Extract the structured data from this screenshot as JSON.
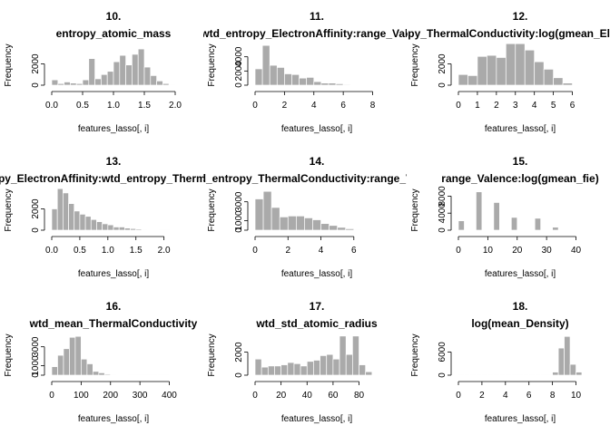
{
  "chart_data": [
    {
      "type": "bar",
      "title_line1": "10.",
      "title_line2": "entropy_atomic_mass",
      "xlabel": "features_lasso[, i]",
      "ylabel": "Frequency",
      "xlim": [
        0,
        2.0
      ],
      "ylim": [
        0,
        4000
      ],
      "xticks": [
        0.0,
        0.5,
        1.0,
        1.5,
        2.0
      ],
      "xtick_labels": [
        "0.0",
        "0.5",
        "1.0",
        "1.5",
        "2.0"
      ],
      "yticks": [
        0,
        2000
      ],
      "ytick_labels": [
        "0",
        "2000"
      ],
      "bin_start": 0.0,
      "bin_width": 0.1,
      "values": [
        500,
        150,
        300,
        200,
        150,
        500,
        2500,
        600,
        1000,
        1300,
        2200,
        2800,
        1900,
        2900,
        3400,
        1700,
        900,
        400,
        150,
        50
      ]
    },
    {
      "type": "bar",
      "title_line1": "11.",
      "title_line2": "wtd_entropy_ElectronAffinity:range_Valence",
      "xlabel": "features_lasso[, i]",
      "ylabel": "Frequency",
      "xlim": [
        0,
        8.4
      ],
      "ylim": [
        0,
        6000
      ],
      "xticks": [
        0,
        2,
        4,
        6,
        8
      ],
      "xtick_labels": [
        "0",
        "2",
        "4",
        "6",
        "8"
      ],
      "yticks": [
        0,
        2000,
        4000
      ],
      "ytick_labels": [
        "0",
        "2000",
        "4000"
      ],
      "bin_start": 0.0,
      "bin_width": 0.5,
      "values": [
        2300,
        5600,
        2800,
        2500,
        1600,
        1500,
        1000,
        1100,
        500,
        300,
        300,
        200,
        100,
        50,
        50,
        50
      ]
    },
    {
      "type": "bar",
      "title_line1": "12.",
      "title_line2": "wtd_entropy_ThermalConductivity:log(gmean_ElectronAffinity)",
      "xlabel": "features_lasso[, i]",
      "ylabel": "Frequency",
      "xlim": [
        0,
        6.5
      ],
      "ylim": [
        0,
        4000
      ],
      "xticks": [
        0,
        1,
        2,
        3,
        4,
        5,
        6
      ],
      "xtick_labels": [
        "0",
        "1",
        "2",
        "3",
        "4",
        "5",
        "6"
      ],
      "yticks": [
        0,
        2000
      ],
      "ytick_labels": [
        "0",
        "2000"
      ],
      "bin_start": 0.0,
      "bin_width": 0.5,
      "values": [
        1000,
        900,
        2700,
        2800,
        2600,
        3900,
        3900,
        3300,
        2200,
        1500,
        700,
        200
      ]
    },
    {
      "type": "bar",
      "title_line1": "13.",
      "title_line2": "wtd_entropy_ElectronAffinity:wtd_entropy_ThermalConductivity",
      "xlabel": "features_lasso[, i]",
      "ylabel": "Frequency",
      "xlim": [
        0,
        2.2
      ],
      "ylim": [
        0,
        4000
      ],
      "xticks": [
        0.0,
        0.5,
        1.0,
        1.5,
        2.0
      ],
      "xtick_labels": [
        "0.0",
        "0.5",
        "1.0",
        "1.5",
        "2.0"
      ],
      "yticks": [
        0,
        2000
      ],
      "ytick_labels": [
        "0",
        "2000"
      ],
      "bin_start": 0.0,
      "bin_width": 0.1,
      "values": [
        2000,
        3900,
        3500,
        2500,
        1800,
        1500,
        1300,
        1000,
        800,
        600,
        500,
        300,
        300,
        200,
        150,
        100,
        50,
        30,
        20,
        10,
        5
      ]
    },
    {
      "type": "bar",
      "title_line1": "14.",
      "title_line2": "wtd_entropy_ThermalConductivity:range_Valence",
      "xlabel": "features_lasso[, i]",
      "ylabel": "Frequency",
      "xlim": [
        0,
        7.5
      ],
      "ylim": [
        0,
        4500
      ],
      "xticks": [
        0,
        2,
        4,
        6
      ],
      "xtick_labels": [
        "0",
        "2",
        "4",
        "6"
      ],
      "yticks": [
        0,
        1000,
        3000
      ],
      "ytick_labels": [
        "0",
        "1000",
        "3000"
      ],
      "bin_start": 0.0,
      "bin_width": 0.5,
      "values": [
        3300,
        4100,
        2400,
        1400,
        1500,
        1500,
        1300,
        1100,
        700,
        500,
        300,
        150,
        50
      ]
    },
    {
      "type": "bar",
      "title_line1": "15.",
      "title_line2": "range_Valence:log(gmean_fie)",
      "xlabel": "features_lasso[, i]",
      "ylabel": "Frequency",
      "xlim": [
        0,
        42
      ],
      "ylim": [
        0,
        10000
      ],
      "xticks": [
        0,
        10,
        20,
        30,
        40
      ],
      "xtick_labels": [
        "0",
        "10",
        "20",
        "30",
        "40"
      ],
      "yticks": [
        0,
        4000,
        8000
      ],
      "ytick_labels": [
        "0",
        "4000",
        "8000"
      ],
      "bin_start": 0.0,
      "bin_width": 2,
      "values": [
        2200,
        0,
        0,
        9000,
        0,
        0,
        6500,
        0,
        0,
        3000,
        0,
        0,
        0,
        2800,
        0,
        0,
        700,
        0,
        0,
        0,
        50
      ]
    },
    {
      "type": "bar",
      "title_line1": "16.",
      "title_line2": "wtd_mean_ThermalConductivity",
      "xlabel": "features_lasso[, i]",
      "ylabel": "Frequency",
      "xlim": [
        0,
        420
      ],
      "ylim": [
        0,
        4500
      ],
      "xticks": [
        0,
        100,
        200,
        300,
        400
      ],
      "xtick_labels": [
        "0",
        "100",
        "200",
        "300",
        "400"
      ],
      "yticks": [
        0,
        1000,
        3000
      ],
      "ytick_labels": [
        "0",
        "1000",
        "3000"
      ],
      "bin_start": 0.0,
      "bin_width": 20,
      "values": [
        900,
        2100,
        2800,
        4000,
        4100,
        1700,
        1200,
        400,
        250,
        100,
        50,
        30,
        20,
        10,
        5,
        5,
        5,
        3,
        2,
        2,
        1
      ]
    },
    {
      "type": "bar",
      "title_line1": "17.",
      "title_line2": "wtd_std_atomic_radius",
      "xlabel": "features_lasso[, i]",
      "ylabel": "Frequency",
      "xlim": [
        0,
        95
      ],
      "ylim": [
        0,
        3700
      ],
      "xticks": [
        0,
        20,
        40,
        60,
        80
      ],
      "xtick_labels": [
        "0",
        "20",
        "40",
        "60",
        "80"
      ],
      "yticks": [
        0,
        2000
      ],
      "ytick_labels": [
        "0",
        "2000"
      ],
      "bin_start": 0.0,
      "bin_width": 5,
      "values": [
        1400,
        700,
        800,
        800,
        900,
        1100,
        1000,
        800,
        1200,
        1300,
        1700,
        1800,
        1400,
        3400,
        1800,
        3400,
        900,
        300
      ]
    },
    {
      "type": "bar",
      "title_line1": "18.",
      "title_line2": "log(mean_Density)",
      "xlabel": "features_lasso[, i]",
      "ylabel": "Frequency",
      "xlim": [
        0,
        10.5
      ],
      "ylim": [
        0,
        11000
      ],
      "xticks": [
        0,
        2,
        4,
        6,
        8,
        10
      ],
      "xtick_labels": [
        "0",
        "2",
        "4",
        "6",
        "8",
        "10"
      ],
      "yticks": [
        0,
        6000
      ],
      "ytick_labels": [
        "0",
        "6000"
      ],
      "bin_start": 0.0,
      "bin_width": 0.5,
      "values": [
        5,
        5,
        5,
        5,
        5,
        5,
        5,
        5,
        5,
        5,
        5,
        5,
        5,
        5,
        5,
        10,
        800,
        7000,
        10000,
        2800,
        800
      ]
    }
  ]
}
